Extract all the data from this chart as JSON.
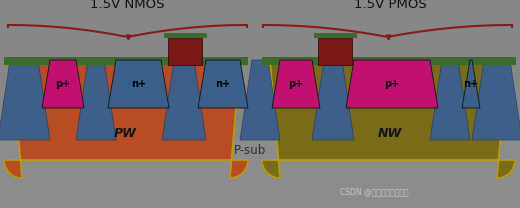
{
  "bg_color": "#878787",
  "psub_color": "#8c8c8c",
  "pw_color": "#b84c22",
  "nw_color": "#7a6b18",
  "sti_color": "#3d5f8a",
  "sti_dark": "#2a4060",
  "green_color": "#3a6b28",
  "gate_red": "#7a1818",
  "gate_green": "#3a6b28",
  "salicide_gray": "#888888",
  "pplus_color": "#c01070",
  "nplus_color": "#3a5f8a",
  "yellow_edge": "#b8a000",
  "nmos_label": "1.5V NMOS",
  "pmos_label": "1.5V PMOS",
  "pw_label": "PW",
  "nw_label": "NW",
  "psub_label": "P-sub",
  "watermark": "CSDN @幻象空间的十三楼",
  "brace_color": "#8b1a1a",
  "figw": 5.2,
  "figh": 2.08,
  "dpi": 100
}
